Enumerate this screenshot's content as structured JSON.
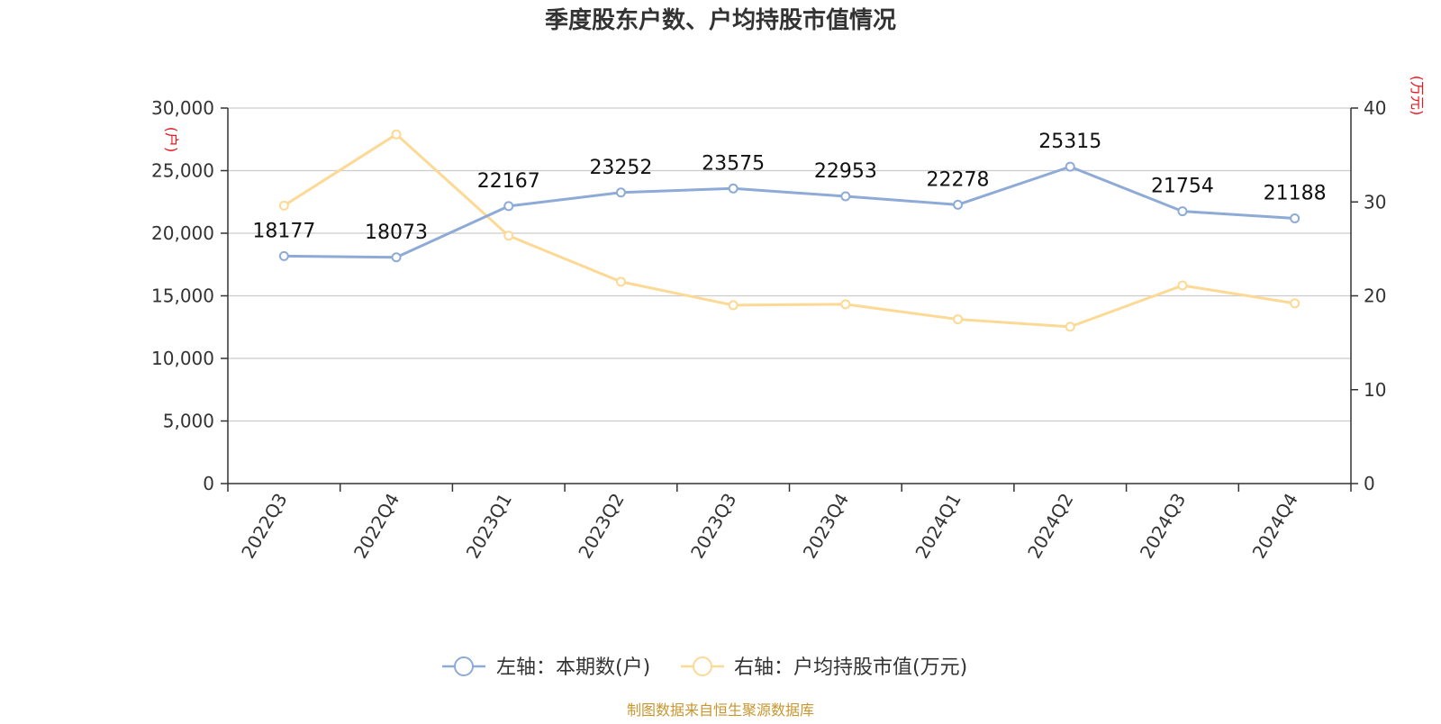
{
  "title": "季度股东户数、户均持股市值情况",
  "source": "制图数据来自恒生聚源数据库",
  "colors": {
    "series1": "#8eabd8",
    "series2": "#fcd994",
    "unit": "#e8141b",
    "source": "#c8962f"
  },
  "chart_data": {
    "type": "line",
    "title": "季度股东户数、户均持股市值情况",
    "categories": [
      "2022Q3",
      "2022Q4",
      "2023Q1",
      "2023Q2",
      "2023Q3",
      "2023Q4",
      "2024Q1",
      "2024Q2",
      "2024Q3",
      "2024Q4"
    ],
    "left_axis": {
      "unit": "(户)",
      "ylim": [
        0,
        30000
      ],
      "ticks": [
        "0",
        "5,000",
        "10,000",
        "15,000",
        "20,000",
        "25,000",
        "30,000"
      ],
      "tick_values": [
        0,
        5000,
        10000,
        15000,
        20000,
        25000,
        30000
      ]
    },
    "right_axis": {
      "unit": "(万元)",
      "ylim": [
        0,
        40
      ],
      "ticks": [
        "0",
        "10",
        "20",
        "30",
        "40"
      ],
      "tick_values": [
        0,
        10,
        20,
        30,
        40
      ]
    },
    "grid": true,
    "legend_position": "bottom",
    "series": [
      {
        "name": "左轴：本期数(户)",
        "axis": "left",
        "values": [
          18177,
          18073,
          22167,
          23252,
          23575,
          22953,
          22278,
          25315,
          21754,
          21188
        ],
        "labels": [
          "18177",
          "18073",
          "22167",
          "23252",
          "23575",
          "22953",
          "22278",
          "25315",
          "21754",
          "21188"
        ]
      },
      {
        "name": "右轴：户均持股市值(万元)",
        "axis": "right",
        "values": [
          29.6,
          37.2,
          26.4,
          21.5,
          19.0,
          19.1,
          17.5,
          16.7,
          21.1,
          19.2
        ]
      }
    ]
  }
}
